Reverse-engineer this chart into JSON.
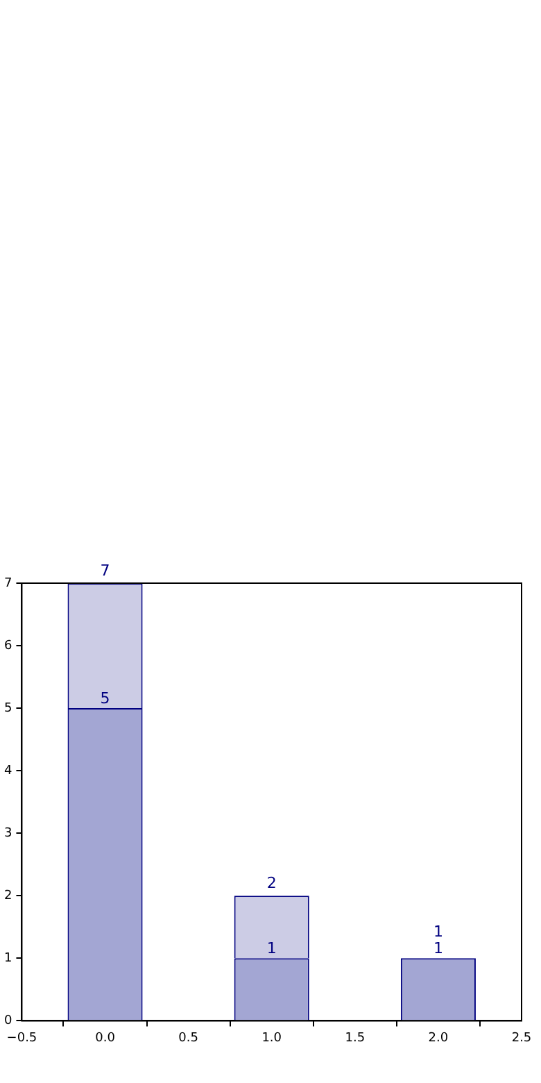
{
  "chart_data": {
    "type": "bar",
    "x": [
      0,
      1,
      2
    ],
    "stacked": true,
    "series": [
      {
        "color": "#a3a6d3",
        "values": [
          5,
          1,
          1
        ],
        "value_labels": [
          "5",
          "1",
          "1"
        ]
      },
      {
        "color": "#ccccE5",
        "values": [
          2,
          1,
          0
        ]
      }
    ],
    "totals": [
      "7",
      "2",
      "1"
    ],
    "xlim": [
      -0.5,
      2.5
    ],
    "xticks": [
      {
        "value": -0.5,
        "label": "−0.5"
      },
      {
        "value": 0,
        "label": "0.0"
      },
      {
        "value": 0.5,
        "label": "0.5"
      },
      {
        "value": 1,
        "label": "1.0"
      },
      {
        "value": 1.5,
        "label": "1.5"
      },
      {
        "value": 2,
        "label": "2.0"
      },
      {
        "value": 2.5,
        "label": "2.5"
      }
    ],
    "ylim": [
      0,
      7
    ],
    "yticks": [
      0,
      1,
      2,
      3,
      4,
      5,
      6,
      7
    ],
    "grid": false,
    "legend": false
  }
}
